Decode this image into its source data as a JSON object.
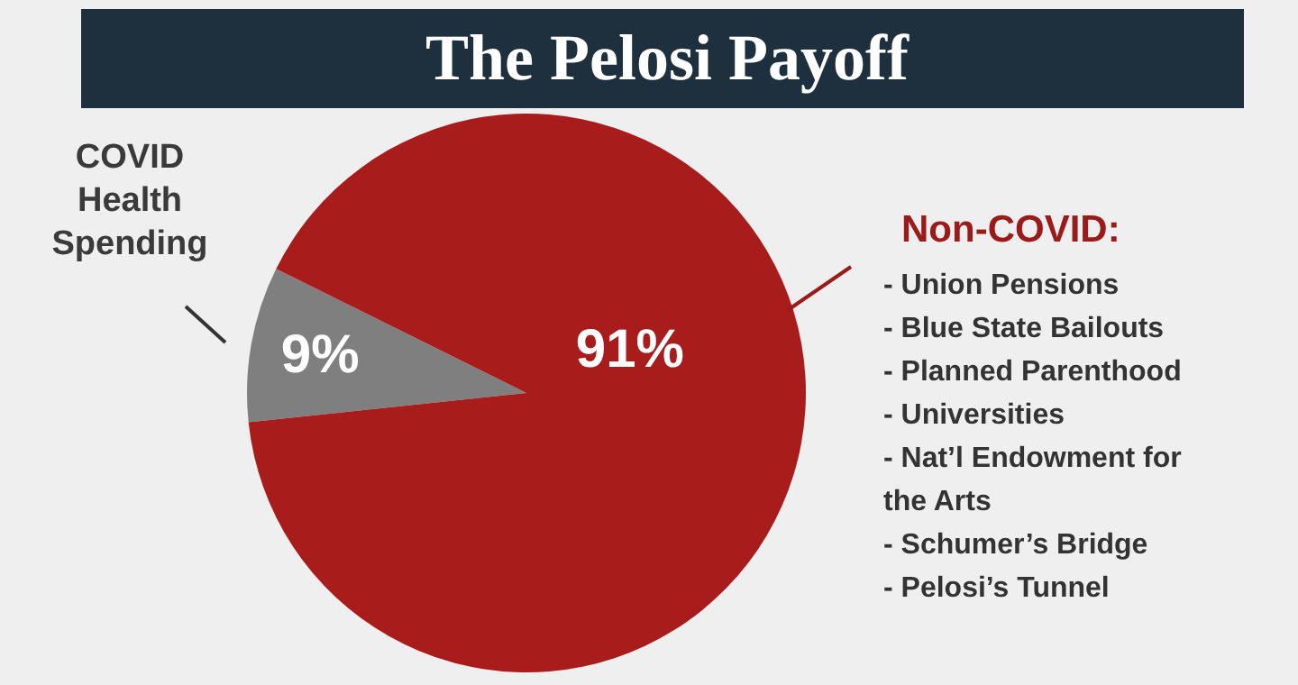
{
  "chart_data": {
    "type": "pie",
    "title": "The Pelosi Payoff",
    "categories": [
      "COVID Health Spending",
      null
    ],
    "values": [
      9,
      91
    ],
    "colors": [
      "#7f7f7f",
      "#a81c1c"
    ],
    "value_labels": [
      "9%",
      "91%"
    ],
    "annotations": [
      "Non-COVID:",
      "- Union Pensions",
      "- Blue State Bailouts",
      "- Planned Parenthood",
      "- Universities",
      "- Nat’l Endowment for\n  the Arts",
      "- Schumer’s Bridge",
      "- Pelosi’s Tunnel"
    ]
  }
}
